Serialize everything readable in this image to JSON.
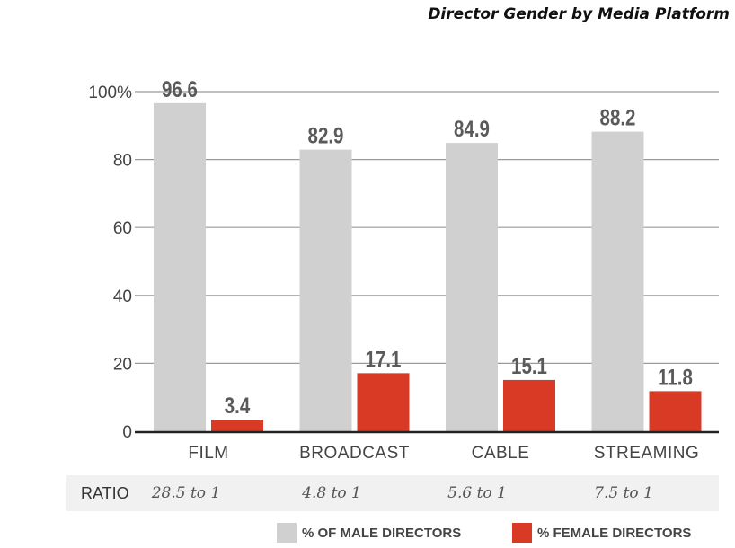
{
  "title": "Director Gender by Media Platform",
  "colors": {
    "male": "#d0d0d0",
    "female": "#d83a26",
    "grid": "#9a9a9a",
    "axis": "#222222"
  },
  "ratio": {
    "label": "RATIO",
    "values": [
      "28.5 to 1",
      "4.8 to 1",
      "5.6 to 1",
      "7.5 to 1"
    ]
  },
  "legend": {
    "male": "% OF MALE DIRECTORS",
    "female": "% FEMALE DIRECTORS"
  },
  "chart_data": {
    "type": "bar",
    "title": "Director Gender by Media Platform",
    "categories": [
      "FILM",
      "BROADCAST",
      "CABLE",
      "STREAMING"
    ],
    "series": [
      {
        "name": "% OF MALE DIRECTORS",
        "values": [
          96.6,
          82.9,
          84.9,
          88.2
        ]
      },
      {
        "name": "% FEMALE DIRECTORS",
        "values": [
          3.4,
          17.1,
          15.1,
          11.8
        ]
      }
    ],
    "data_labels": [
      [
        "96.6",
        "82.9",
        "84.9",
        "88.2"
      ],
      [
        "3.4",
        "17.1",
        "15.1",
        "11.8"
      ]
    ],
    "yticks": [
      "0",
      "20",
      "40",
      "60",
      "80",
      "100%"
    ],
    "ytick_values": [
      0,
      20,
      40,
      60,
      80,
      100
    ],
    "ylim": [
      0,
      100
    ],
    "grid": true,
    "legend_position": "bottom-right"
  }
}
